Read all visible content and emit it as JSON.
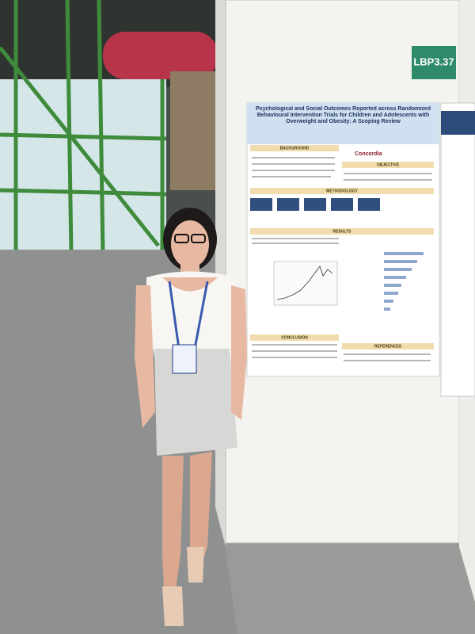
{
  "board_label": "LBP3.37",
  "poster": {
    "title": "Psychological and Social Outcomes Reported across Randomized Behavioural Intervention Trials for Children and Adolescents with Overweight and Obesity: A Scoping Review",
    "logo": "Concordia",
    "sections": [
      "BACKGROUND",
      "OBJECTIVE",
      "METHODOLOGY",
      "RESULTS",
      "CONCLUSION",
      "REFERENCES"
    ]
  }
}
